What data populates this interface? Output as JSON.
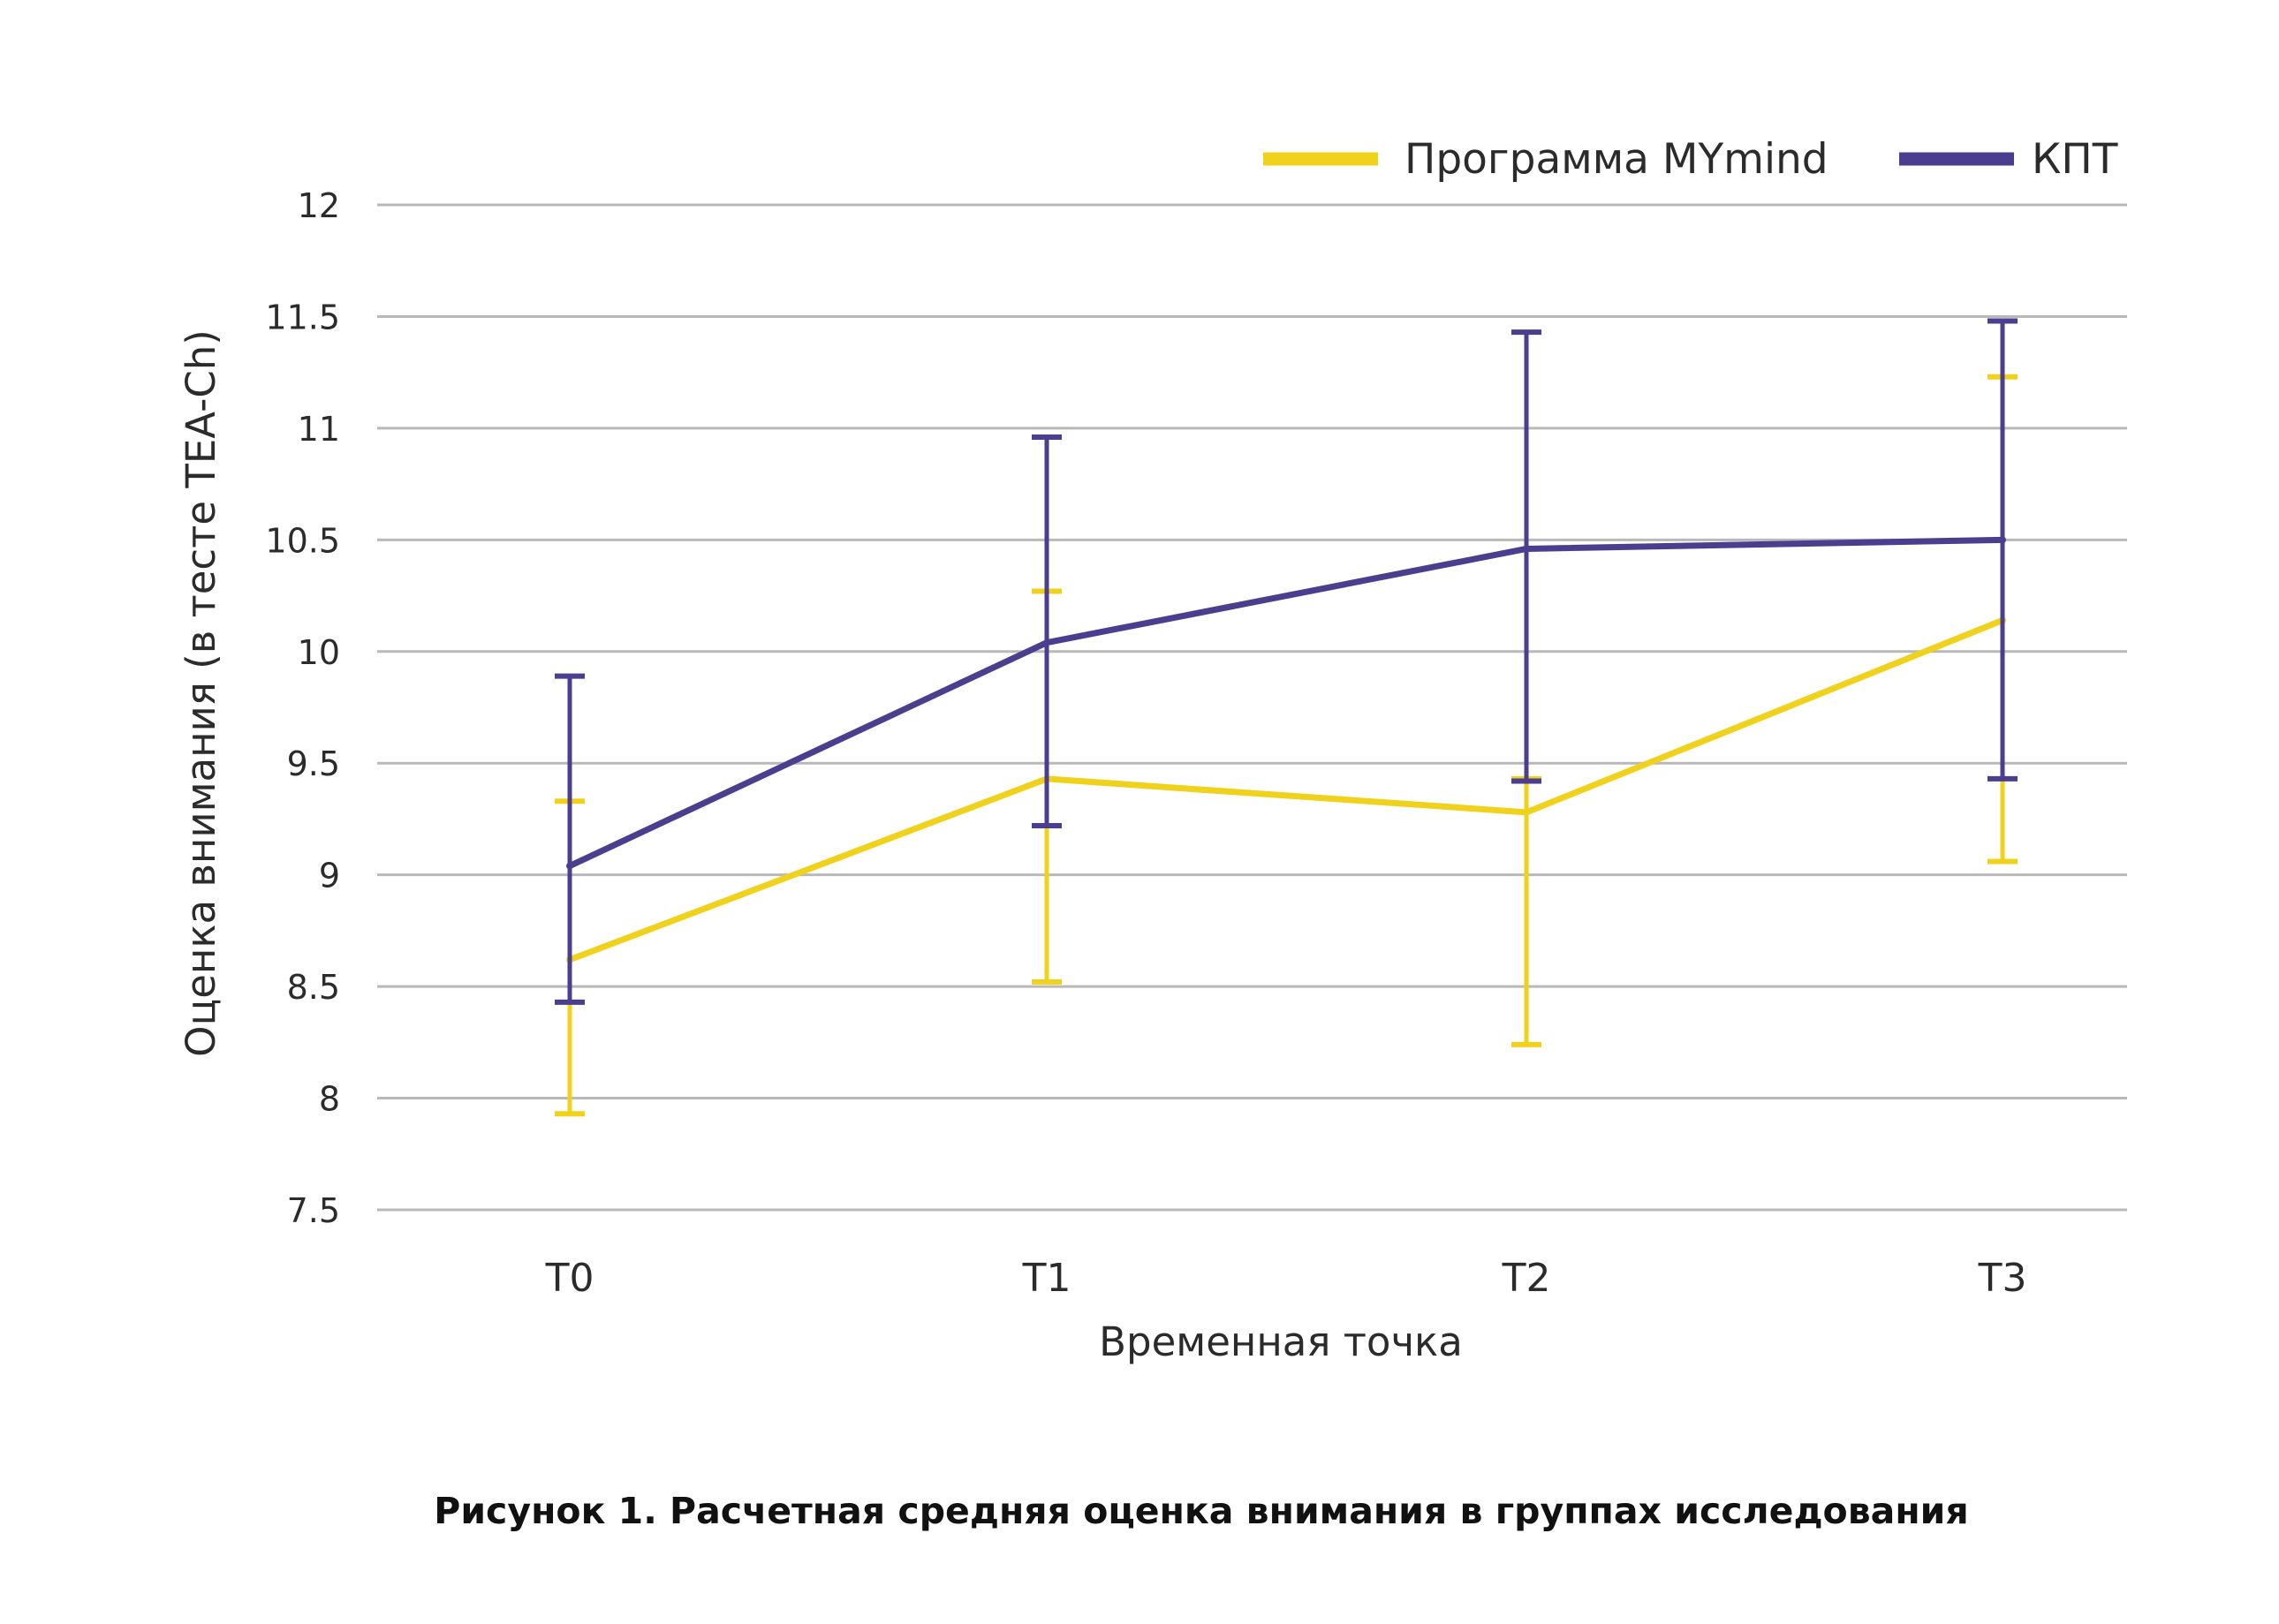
{
  "chart_data": {
    "type": "line",
    "title": "",
    "categories": [
      "T0",
      "T1",
      "T2",
      "T3"
    ],
    "xlabel": "Временная точка",
    "ylabel": "Оценка внимания (в тесте TEA-Ch)",
    "ylim": [
      7.5,
      12
    ],
    "yticks": [
      7.5,
      8,
      8.5,
      9,
      9.5,
      10,
      10.5,
      11,
      11.5,
      12
    ],
    "ytick_labels": [
      "7.5",
      "8",
      "8.5",
      "9",
      "9.5",
      "10",
      "10.5",
      "11",
      "11.5",
      "12"
    ],
    "grid": true,
    "legend_position": "top-right",
    "series": [
      {
        "name": "Программа MYmind",
        "color": "#f0d21c",
        "values": [
          8.62,
          9.43,
          9.28,
          10.14
        ],
        "error_low": [
          7.93,
          8.52,
          8.24,
          9.06
        ],
        "error_high": [
          9.33,
          10.27,
          9.43,
          11.23
        ]
      },
      {
        "name": "КПТ",
        "color": "#4b3e8f",
        "values": [
          9.04,
          10.04,
          10.46,
          10.5
        ],
        "error_low": [
          8.43,
          9.22,
          9.42,
          9.43
        ],
        "error_high": [
          9.89,
          10.96,
          11.43,
          11.48
        ]
      }
    ]
  },
  "caption": "Рисунок 1. Расчетная средняя оценка внимания в группах исследования",
  "colors": {
    "grid": "#b9b9b9",
    "text": "#2b2b2b"
  }
}
